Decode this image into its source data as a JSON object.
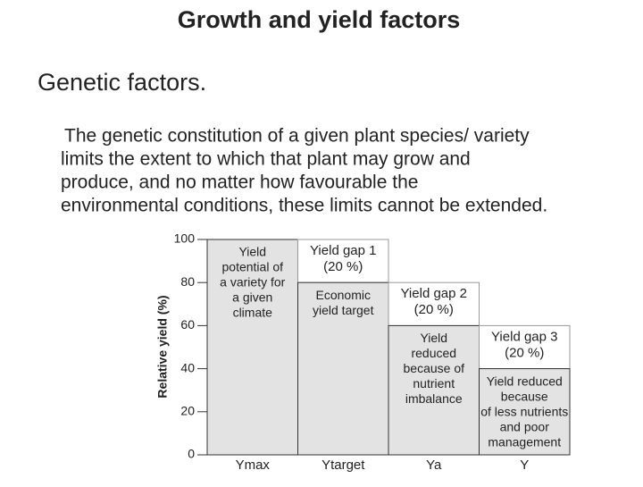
{
  "slide": {
    "title": "Growth and yield factors",
    "heading": "Genetic factors.",
    "paragraph": [
      "The genetic constitution of a given plant species/ variety",
      "limits the extent to which that plant may grow and",
      "produce, and no matter how favourable the",
      "environmental conditions, these limits cannot be extended."
    ]
  },
  "chart_data": {
    "type": "bar",
    "y_label": "Relative yield (%)",
    "categories": [
      "Ymax",
      "Ytarget",
      "Ya",
      "Y"
    ],
    "values": [
      100,
      80,
      60,
      40
    ],
    "bar_labels": [
      [
        "Yield",
        "potential of",
        "a variety for",
        "a given",
        "climate"
      ],
      [
        "Economic",
        "yield target"
      ],
      [
        "Yield",
        "reduced",
        "because of",
        "nutrient",
        "imbalance"
      ],
      [
        "Yield reduced",
        "because",
        "of less nutrients",
        "and poor",
        "management"
      ]
    ],
    "gaps": {
      "names": [
        [
          "Yield gap 1"
        ],
        [
          "Yield gap 2"
        ],
        [
          "Yield gap 3"
        ]
      ],
      "values": [
        20,
        20,
        20
      ],
      "value_labels": [
        "(20 %)",
        "(20 %)",
        "(20 %)"
      ]
    },
    "color": "#e3e3e3",
    "ylim": [
      0,
      100
    ],
    "yticks": [
      0,
      20,
      40,
      60,
      80,
      100
    ]
  }
}
